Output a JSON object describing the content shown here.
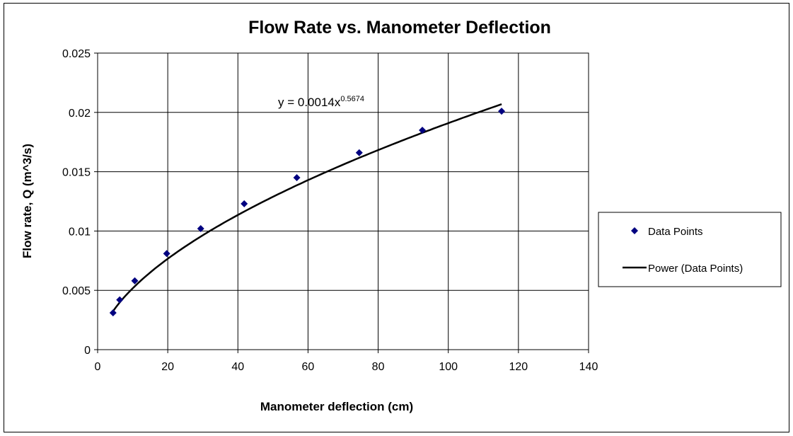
{
  "chart_data": {
    "type": "scatter",
    "title": "Flow Rate vs. Manometer Deflection",
    "xlabel": "Manometer deflection (cm)",
    "ylabel": "Flow rate, Q (m^3/s)",
    "xlim": [
      0,
      140
    ],
    "ylim": [
      0,
      0.025
    ],
    "x_ticks": [
      "0",
      "20",
      "40",
      "60",
      "80",
      "100",
      "120",
      "140"
    ],
    "y_ticks": [
      "0",
      "0.005",
      "0.01",
      "0.015",
      "0.02",
      "0.025"
    ],
    "grid": true,
    "legend_position": "right",
    "series": [
      {
        "name": "Data Points",
        "marker": "diamond",
        "color": "#000080",
        "x": [
          4.4,
          6.3,
          10.6,
          19.7,
          29.4,
          41.8,
          56.8,
          74.6,
          92.6,
          115.2
        ],
        "y": [
          0.0031,
          0.0042,
          0.0058,
          0.0081,
          0.0102,
          0.0123,
          0.0145,
          0.0166,
          0.0185,
          0.0201
        ]
      },
      {
        "name": "Power (Data Points)",
        "type": "trendline",
        "color": "#000000",
        "coefficient": 0.0014,
        "exponent": 0.5674,
        "x_range": [
          4.4,
          115.2
        ]
      }
    ],
    "annotation": {
      "prefix": "y = 0.0014x",
      "exponent": "0.5674"
    }
  }
}
